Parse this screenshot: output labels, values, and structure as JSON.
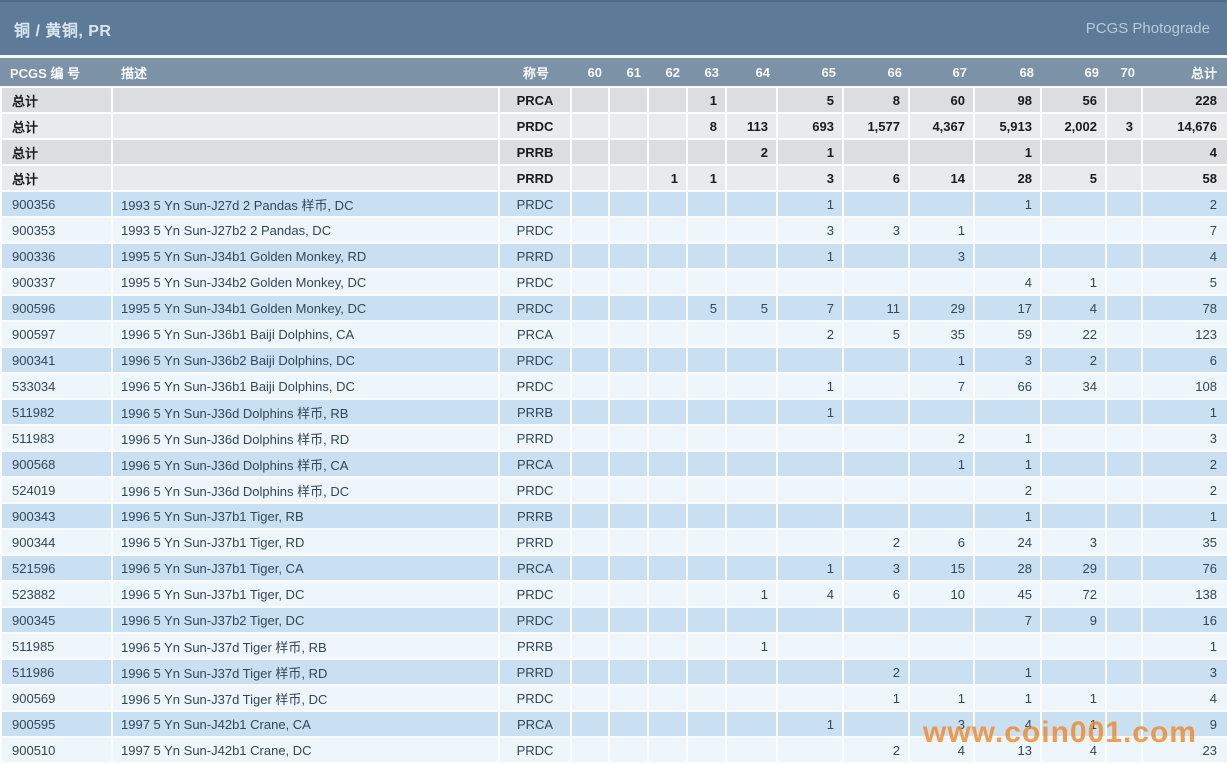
{
  "title_bar": {
    "title": "铜 / 黄铜, PR",
    "right_label": "PCGS Photograde"
  },
  "watermark": "www.coin001.com",
  "colors": {
    "title_bar_bg": "#5d7b98",
    "header_bg": "#7c92a6",
    "summary_row_dark": "#dbdddf",
    "summary_row_light": "#e8eaec",
    "data_row_dark": "#c9dff2",
    "data_row_light": "#eef5fb",
    "link_orange": "#b05c30",
    "text_dark": "#33475a",
    "watermark_orange": "#f08a2a"
  },
  "table": {
    "columns": [
      "PCGS 编 号",
      "描述",
      "称号",
      "60",
      "61",
      "62",
      "63",
      "64",
      "65",
      "66",
      "67",
      "68",
      "69",
      "70",
      "总计"
    ],
    "grade_keys": [
      "60",
      "61",
      "62",
      "63",
      "64",
      "65",
      "66",
      "67",
      "68",
      "69",
      "70"
    ],
    "summary_rows": [
      {
        "label": "总计",
        "description": "",
        "designation": "PRCA",
        "grades": {
          "63": "1",
          "65": "5",
          "66": "8",
          "67": "60",
          "68": "98",
          "69": "56"
        },
        "total": "228"
      },
      {
        "label": "总计",
        "description": "",
        "designation": "PRDC",
        "grades": {
          "63": "8",
          "64": "113",
          "65": "693",
          "66": "1,577",
          "67": "4,367",
          "68": "5,913",
          "69": "2,002",
          "70": "3"
        },
        "total": "14,676"
      },
      {
        "label": "总计",
        "description": "",
        "designation": "PRRB",
        "grades": {
          "64": "2",
          "65": "1",
          "68": "1"
        },
        "total": "4"
      },
      {
        "label": "总计",
        "description": "",
        "designation": "PRRD",
        "grades": {
          "62": "1",
          "63": "1",
          "65": "3",
          "66": "6",
          "67": "14",
          "68": "28",
          "69": "5"
        },
        "total": "58"
      }
    ],
    "rows": [
      {
        "pcgs_no": "900356",
        "description": "1993 5 Yn Sun-J27d 2 Pandas 样币, DC",
        "designation": "PRDC",
        "grades": {
          "65": "1",
          "68": "1"
        },
        "total": "2"
      },
      {
        "pcgs_no": "900353",
        "description": "1993 5 Yn Sun-J27b2 2 Pandas, DC",
        "designation": "PRDC",
        "grades": {
          "65": "3",
          "66": "3",
          "67": "1"
        },
        "total": "7"
      },
      {
        "pcgs_no": "900336",
        "description": "1995 5 Yn Sun-J34b1 Golden Monkey, RD",
        "designation": "PRRD",
        "grades": {
          "65": "1",
          "67": "3"
        },
        "total": "4"
      },
      {
        "pcgs_no": "900337",
        "description": "1995 5 Yn Sun-J34b2 Golden Monkey, DC",
        "designation": "PRDC",
        "grades": {
          "68": "4",
          "69": "1"
        },
        "total": "5"
      },
      {
        "pcgs_no": "900596",
        "description": "1995 5 Yn Sun-J34b1 Golden Monkey, DC",
        "designation": "PRDC",
        "grades": {
          "63": "5",
          "64": "5",
          "65": "7",
          "66": "11",
          "67": "29",
          "68": "17",
          "69": "4"
        },
        "total": "78"
      },
      {
        "pcgs_no": "900597",
        "description": "1996 5 Yn Sun-J36b1 Baiji Dolphins, CA",
        "designation": "PRCA",
        "grades": {
          "65": "2",
          "66": "5",
          "67": "35",
          "68": "59",
          "69": "22"
        },
        "total": "123"
      },
      {
        "pcgs_no": "900341",
        "description": "1996 5 Yn Sun-J36b2 Baiji Dolphins, DC",
        "designation": "PRDC",
        "grades": {
          "67": "1",
          "68": "3",
          "69": "2"
        },
        "total": "6"
      },
      {
        "pcgs_no": "533034",
        "description": "1996 5 Yn Sun-J36b1 Baiji Dolphins, DC",
        "designation": "PRDC",
        "grades": {
          "65": "1",
          "67": "7",
          "68": "66",
          "69": "34"
        },
        "total": "108"
      },
      {
        "pcgs_no": "511982",
        "description": "1996 5 Yn Sun-J36d Dolphins 样币, RB",
        "designation": "PRRB",
        "grades": {
          "65": "1"
        },
        "total": "1"
      },
      {
        "pcgs_no": "511983",
        "description": "1996 5 Yn Sun-J36d Dolphins 样币, RD",
        "designation": "PRRD",
        "grades": {
          "67": "2",
          "68": "1"
        },
        "total": "3"
      },
      {
        "pcgs_no": "900568",
        "description": "1996 5 Yn Sun-J36d Dolphins 样币, CA",
        "designation": "PRCA",
        "grades": {
          "67": "1",
          "68": "1"
        },
        "total": "2"
      },
      {
        "pcgs_no": "524019",
        "description": "1996 5 Yn Sun-J36d Dolphins 样币, DC",
        "designation": "PRDC",
        "grades": {
          "68": "2"
        },
        "total": "2"
      },
      {
        "pcgs_no": "900343",
        "description": "1996 5 Yn Sun-J37b1 Tiger, RB",
        "designation": "PRRB",
        "grades": {
          "68": "1"
        },
        "total": "1"
      },
      {
        "pcgs_no": "900344",
        "description": "1996 5 Yn Sun-J37b1 Tiger, RD",
        "designation": "PRRD",
        "grades": {
          "66": "2",
          "67": "6",
          "68": "24",
          "69": "3"
        },
        "total": "35"
      },
      {
        "pcgs_no": "521596",
        "description": "1996 5 Yn Sun-J37b1 Tiger, CA",
        "designation": "PRCA",
        "grades": {
          "65": "1",
          "66": "3",
          "67": "15",
          "68": "28",
          "69": "29"
        },
        "total": "76"
      },
      {
        "pcgs_no": "523882",
        "description": "1996 5 Yn Sun-J37b1 Tiger, DC",
        "designation": "PRDC",
        "grades": {
          "64": "1",
          "65": "4",
          "66": "6",
          "67": "10",
          "68": "45",
          "69": "72"
        },
        "total": "138"
      },
      {
        "pcgs_no": "900345",
        "description": "1996 5 Yn Sun-J37b2 Tiger, DC",
        "designation": "PRDC",
        "grades": {
          "68": "7",
          "69": "9"
        },
        "total": "16"
      },
      {
        "pcgs_no": "511985",
        "description": "1996 5 Yn Sun-J37d Tiger 样币, RB",
        "designation": "PRRB",
        "grades": {
          "64": "1"
        },
        "total": "1"
      },
      {
        "pcgs_no": "511986",
        "description": "1996 5 Yn Sun-J37d Tiger 样币, RD",
        "designation": "PRRD",
        "grades": {
          "66": "2",
          "68": "1"
        },
        "total": "3"
      },
      {
        "pcgs_no": "900569",
        "description": "1996 5 Yn Sun-J37d Tiger 样币, DC",
        "designation": "PRDC",
        "grades": {
          "66": "1",
          "67": "1",
          "68": "1",
          "69": "1"
        },
        "total": "4"
      },
      {
        "pcgs_no": "900595",
        "description": "1997 5 Yn Sun-J42b1 Crane, CA",
        "designation": "PRCA",
        "grades": {
          "65": "1",
          "67": "3",
          "68": "4",
          "69": "1"
        },
        "total": "9"
      },
      {
        "pcgs_no": "900510",
        "description": "1997 5 Yn Sun-J42b1 Crane, DC",
        "designation": "PRDC",
        "grades": {
          "66": "2",
          "67": "4",
          "68": "13",
          "69": "4"
        },
        "total": "23"
      }
    ]
  }
}
